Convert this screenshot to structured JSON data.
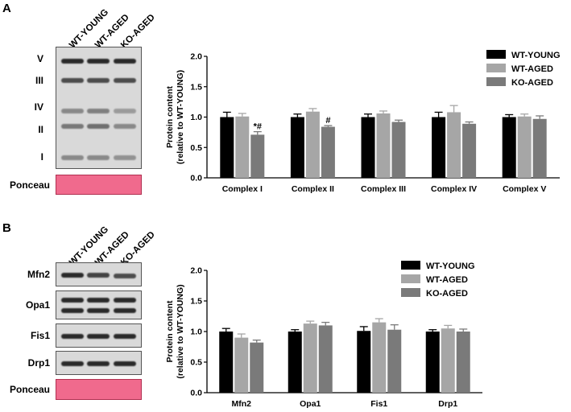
{
  "panel_a": {
    "letter": "A",
    "lanes": [
      "WT-YOUNG",
      "WT-AGED",
      "KO-AGED"
    ],
    "complex_labels": [
      "V",
      "III",
      "IV",
      "II",
      "I"
    ],
    "ponceau_label": "Ponceau"
  },
  "panel_b": {
    "letter": "B",
    "lanes": [
      "WT-YOUNG",
      "WT-AGED",
      "KO-AGED"
    ],
    "blot_labels": [
      "Mfn2",
      "Opa1",
      "Fis1",
      "Drp1",
      "Ponceau"
    ]
  },
  "colors": {
    "WT-YOUNG": "#000000",
    "WT-AGED": "#a6a6a6",
    "KO-AGED": "#7a7a7a"
  },
  "chart_data": [
    {
      "type": "bar",
      "categories": [
        "Complex I",
        "Complex II",
        "Complex III",
        "Complex IV",
        "Complex V"
      ],
      "series": [
        {
          "name": "WT-YOUNG",
          "values": [
            1.0,
            1.0,
            1.0,
            1.0,
            1.0
          ],
          "errors": [
            0.08,
            0.05,
            0.05,
            0.08,
            0.04
          ]
        },
        {
          "name": "WT-AGED",
          "values": [
            1.01,
            1.09,
            1.06,
            1.08,
            1.01
          ],
          "errors": [
            0.05,
            0.05,
            0.04,
            0.11,
            0.04
          ]
        },
        {
          "name": "KO-AGED",
          "values": [
            0.71,
            0.84,
            0.92,
            0.89,
            0.97
          ],
          "errors": [
            0.05,
            0.02,
            0.03,
            0.03,
            0.05
          ]
        }
      ],
      "annotations": [
        {
          "category": "Complex I",
          "series": "KO-AGED",
          "text": "*#"
        },
        {
          "category": "Complex II",
          "series": "KO-AGED",
          "text": "#"
        }
      ],
      "ylabel": "Protein content",
      "ylabel2": "(relative to WT-YOUNG)",
      "ylim": [
        0,
        2.0
      ],
      "yticks": [
        "0.0",
        "0.5",
        "1.0",
        "1.5",
        "2.0"
      ],
      "legend": "top-right"
    },
    {
      "type": "bar",
      "categories": [
        "Mfn2",
        "Opa1",
        "Fis1",
        "Drp1"
      ],
      "series": [
        {
          "name": "WT-YOUNG",
          "values": [
            1.0,
            1.0,
            1.01,
            1.0
          ],
          "errors": [
            0.05,
            0.03,
            0.07,
            0.03
          ]
        },
        {
          "name": "WT-AGED",
          "values": [
            0.9,
            1.13,
            1.15,
            1.05
          ],
          "errors": [
            0.06,
            0.04,
            0.06,
            0.05
          ]
        },
        {
          "name": "KO-AGED",
          "values": [
            0.82,
            1.1,
            1.03,
            1.0
          ],
          "errors": [
            0.04,
            0.05,
            0.08,
            0.04
          ]
        }
      ],
      "annotations": [],
      "ylabel": "Protein content",
      "ylabel2": "(relative to WT-YOUNG)",
      "ylim": [
        0,
        2.0
      ],
      "yticks": [
        "0.0",
        "0.5",
        "1.0",
        "1.5",
        "2.0"
      ],
      "legend": "top-right"
    }
  ]
}
